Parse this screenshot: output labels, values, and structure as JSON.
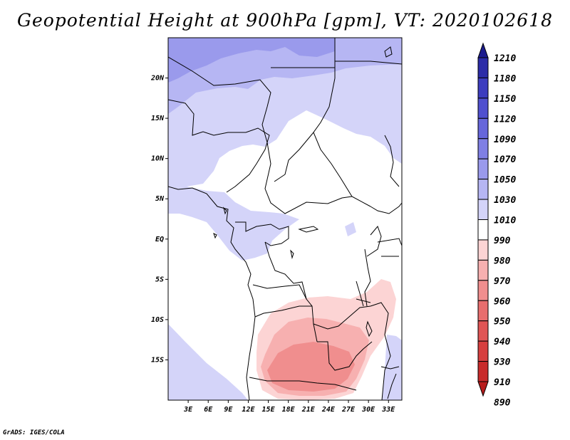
{
  "title": "Geopotential Height at 900hPa [gpm], VT: 2020102618",
  "credit": "GrADS: IGES/COLA",
  "map": {
    "lon_range": [
      0,
      35
    ],
    "lat_range": [
      -20,
      25
    ],
    "lat_ticks": [
      {
        "value": 20,
        "label": "20N"
      },
      {
        "value": 15,
        "label": "15N"
      },
      {
        "value": 10,
        "label": "10N"
      },
      {
        "value": 5,
        "label": "5N"
      },
      {
        "value": 0,
        "label": "EQ"
      },
      {
        "value": -5,
        "label": "5S"
      },
      {
        "value": -10,
        "label": "10S"
      },
      {
        "value": -15,
        "label": "15S"
      }
    ],
    "lon_ticks": [
      {
        "value": 3,
        "label": "3E"
      },
      {
        "value": 6,
        "label": "6E"
      },
      {
        "value": 9,
        "label": "9E"
      },
      {
        "value": 12,
        "label": "12E"
      },
      {
        "value": 15,
        "label": "15E"
      },
      {
        "value": 18,
        "label": "18E"
      },
      {
        "value": 21,
        "label": "21E"
      },
      {
        "value": 24,
        "label": "24E"
      },
      {
        "value": 27,
        "label": "27E"
      },
      {
        "value": 30,
        "label": "30E"
      },
      {
        "value": 33,
        "label": "33E"
      }
    ]
  },
  "colorbar": {
    "levels": [
      "1210",
      "1180",
      "1150",
      "1120",
      "1090",
      "1070",
      "1050",
      "1030",
      "1010",
      "990",
      "980",
      "970",
      "960",
      "950",
      "940",
      "930",
      "910",
      "890"
    ],
    "colors": [
      "#1c1c8e",
      "#2c2ca8",
      "#3d3dbf",
      "#5050cf",
      "#6666db",
      "#7f7fe4",
      "#9a9aec",
      "#b6b6f3",
      "#d4d4f9",
      "#ffffff",
      "#fcd4d4",
      "#f7b0b0",
      "#f08e8e",
      "#e86e6e",
      "#e05555",
      "#d63f3f",
      "#c82b2b",
      "#b71c1c"
    ]
  }
}
